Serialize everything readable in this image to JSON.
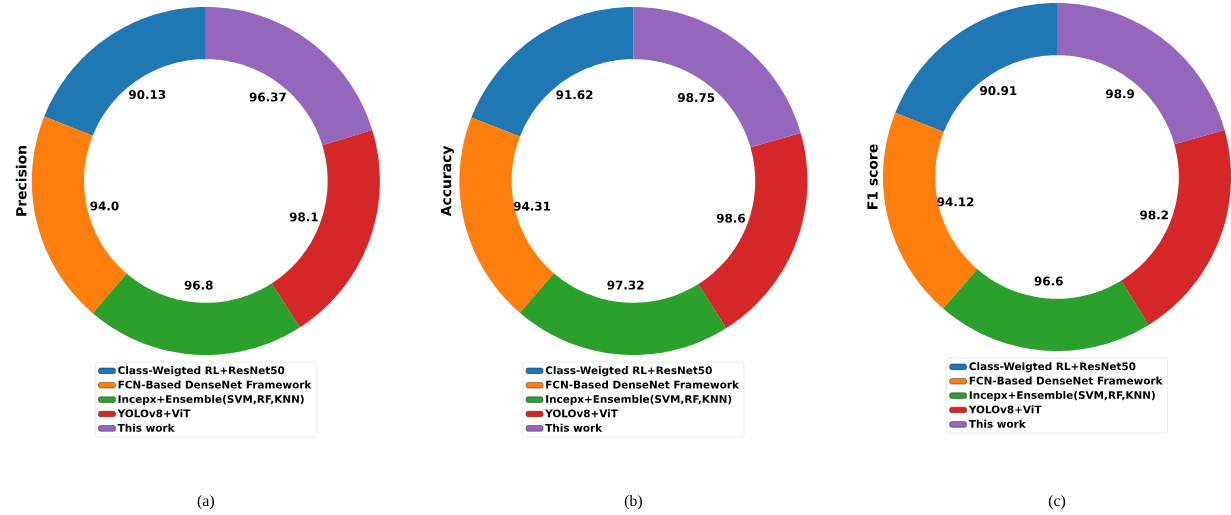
{
  "chart_data": [
    {
      "type": "donut",
      "ylabel": "Precision",
      "categories": [
        "Class-Weigted RL+ResNet50",
        "FCN-Based DenseNet Framework",
        "Incepx+Ensemble(SVM,RF,KNN)",
        "YOLOv8+ViT",
        "This work"
      ],
      "values": [
        90.13,
        94.0,
        96.8,
        98.1,
        96.37
      ],
      "value_labels": [
        "90.13",
        "94.0",
        "96.8",
        "98.1",
        "96.37"
      ],
      "colors": [
        "#1f77b4",
        "#ff7f0e",
        "#2ca02c",
        "#d62728",
        "#9467bd"
      ],
      "legend": "bottom",
      "annotations": [
        "(a)"
      ]
    },
    {
      "type": "donut",
      "ylabel": "Accuracy",
      "categories": [
        "Class-Weigted RL+ResNet50",
        "FCN-Based DenseNet Framework",
        "Incepx+Ensemble(SVM,RF,KNN)",
        "YOLOv8+ViT",
        "This work"
      ],
      "values": [
        91.62,
        94.31,
        97.32,
        98.6,
        98.75
      ],
      "colors": [
        "#1f77b4",
        "#ff7f0e",
        "#2ca02c",
        "#d62728",
        "#9467bd"
      ],
      "data_labels": true,
      "legend": "bottom",
      "annotations": [
        "(b)"
      ]
    },
    {
      "type": "donut",
      "ylabel": "F1 score",
      "categories": [
        "Class-Weigted RL+ResNet50",
        "FCN-Based DenseNet Framework",
        "Incepx+Ensemble(SVM,RF,KNN)",
        "YOLOv8+ViT",
        "This work"
      ],
      "values": [
        90.91,
        94.12,
        96.6,
        98.2,
        98.9
      ],
      "colors": [
        "#1f77b4",
        "#ff7f0e",
        "#2ca02c",
        "#d62728",
        "#9467bd"
      ],
      "data_labels": true,
      "legend": "bottom",
      "annotations": [
        "(c)"
      ]
    }
  ]
}
